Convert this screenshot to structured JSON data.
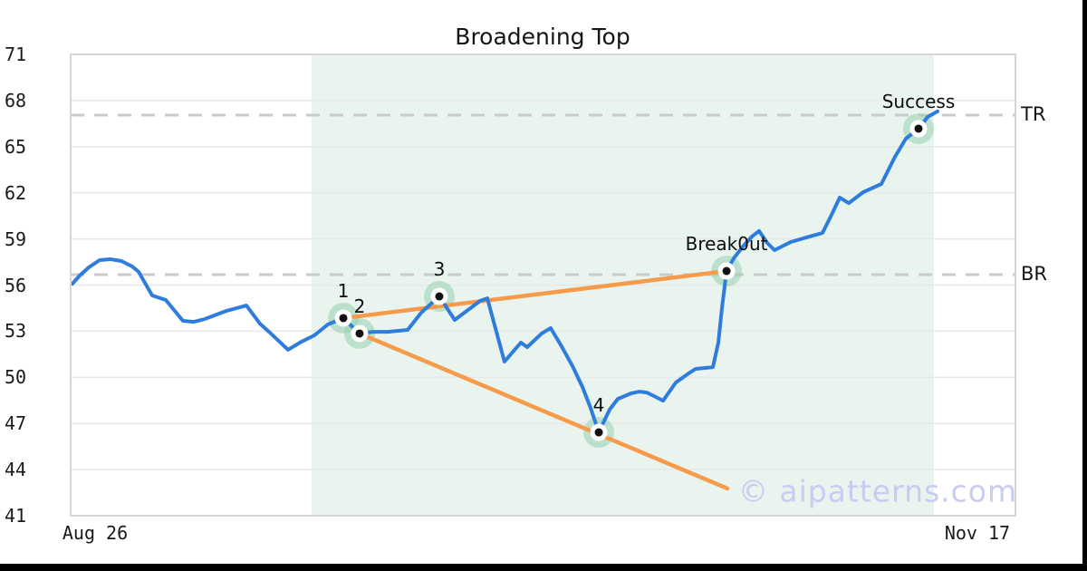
{
  "title": "Broadening Top",
  "watermark": "© aipatterns.com",
  "colors": {
    "price": "#2e7cdb",
    "trend": "#f79a49",
    "shade": "#e9f4ef",
    "dashed": "#cbcbcb",
    "grid": "#e8e8e8",
    "border": "#d6d6d6",
    "halo": "rgba(150,210,175,0.55)",
    "marker_ring": "#ffffff",
    "marker_dot": "#111111",
    "watermark": "#c8ccf0",
    "text": "#1a1a1a"
  },
  "chart_data": {
    "type": "line",
    "title": "Broadening Top",
    "xlabel": "",
    "ylabel": "",
    "ylim": [
      41,
      71
    ],
    "xlim": [
      0,
      100
    ],
    "grid": true,
    "legend": "none",
    "y_ticks": [
      41,
      44,
      47,
      50,
      53,
      56,
      59,
      62,
      65,
      68,
      71
    ],
    "x_ticks": [
      {
        "label": "Aug 26",
        "u": 2.59
      },
      {
        "label": "Nov 17",
        "u": 95.97
      }
    ],
    "shade": {
      "u0": 25.5,
      "u1": 91.37
    },
    "levels": [
      {
        "label": "TR",
        "value": 67.05
      },
      {
        "label": "BR",
        "value": 56.68
      }
    ],
    "trendlines": [
      {
        "name": "upper-broadening-trendline",
        "from": [
          28.86,
          53.85
        ],
        "to": [
          69.42,
          56.91
        ]
      },
      {
        "name": "lower-broadening-trendline",
        "from": [
          30.58,
          52.85
        ],
        "to": [
          69.51,
          42.77
        ]
      }
    ],
    "markers": [
      {
        "label": "1",
        "u": 28.86,
        "p": 53.85
      },
      {
        "label": "2",
        "u": 30.58,
        "p": 52.85
      },
      {
        "label": "3",
        "u": 39.02,
        "p": 55.26
      },
      {
        "label": "4",
        "u": 55.9,
        "p": 46.42
      },
      {
        "label": "Break0ut",
        "u": 69.42,
        "p": 56.91
      },
      {
        "label": "Success",
        "u": 89.74,
        "p": 66.17
      }
    ],
    "series": [
      {
        "name": "price",
        "points": [
          [
            0.19,
            56.09
          ],
          [
            0.96,
            56.62
          ],
          [
            1.92,
            57.15
          ],
          [
            3.07,
            57.62
          ],
          [
            4.22,
            57.68
          ],
          [
            5.37,
            57.56
          ],
          [
            6.52,
            57.21
          ],
          [
            7.19,
            56.86
          ],
          [
            8.63,
            55.32
          ],
          [
            10.07,
            55.03
          ],
          [
            11.89,
            53.67
          ],
          [
            13.04,
            53.61
          ],
          [
            14.19,
            53.79
          ],
          [
            16.49,
            54.32
          ],
          [
            18.6,
            54.67
          ],
          [
            20.04,
            53.49
          ],
          [
            21.0,
            52.96
          ],
          [
            23.01,
            51.79
          ],
          [
            24.45,
            52.32
          ],
          [
            25.79,
            52.73
          ],
          [
            27.23,
            53.44
          ],
          [
            28.86,
            53.85
          ],
          [
            30.58,
            52.85
          ],
          [
            32.02,
            52.96
          ],
          [
            33.56,
            52.96
          ],
          [
            35.67,
            53.08
          ],
          [
            37.1,
            54.2
          ],
          [
            38.16,
            54.79
          ],
          [
            39.02,
            55.26
          ],
          [
            40.65,
            53.73
          ],
          [
            42.19,
            54.44
          ],
          [
            43.34,
            54.97
          ],
          [
            44.1,
            55.14
          ],
          [
            45.92,
            51.02
          ],
          [
            47.65,
            52.26
          ],
          [
            48.32,
            51.96
          ],
          [
            49.86,
            52.85
          ],
          [
            50.81,
            53.2
          ],
          [
            51.96,
            52.02
          ],
          [
            53.12,
            50.73
          ],
          [
            54.17,
            49.37
          ],
          [
            55.03,
            48.01
          ],
          [
            55.9,
            46.42
          ],
          [
            57.05,
            47.9
          ],
          [
            57.91,
            48.6
          ],
          [
            59.35,
            48.96
          ],
          [
            60.21,
            49.07
          ],
          [
            60.98,
            49.01
          ],
          [
            61.94,
            48.72
          ],
          [
            62.7,
            48.48
          ],
          [
            64.05,
            49.66
          ],
          [
            65.39,
            50.25
          ],
          [
            66.16,
            50.55
          ],
          [
            67.11,
            50.61
          ],
          [
            67.98,
            50.66
          ],
          [
            68.55,
            52.26
          ],
          [
            68.94,
            54.5
          ],
          [
            69.42,
            56.91
          ],
          [
            70.18,
            57.74
          ],
          [
            71.14,
            58.5
          ],
          [
            72.1,
            59.15
          ],
          [
            72.87,
            59.51
          ],
          [
            73.73,
            58.74
          ],
          [
            74.5,
            58.27
          ],
          [
            76.22,
            58.8
          ],
          [
            77.85,
            59.09
          ],
          [
            79.58,
            59.39
          ],
          [
            80.54,
            60.57
          ],
          [
            81.4,
            61.69
          ],
          [
            82.36,
            61.33
          ],
          [
            83.89,
            62.04
          ],
          [
            85.81,
            62.57
          ],
          [
            87.25,
            64.34
          ],
          [
            88.4,
            65.52
          ],
          [
            89.74,
            66.17
          ],
          [
            90.7,
            66.93
          ],
          [
            91.75,
            67.29
          ]
        ]
      }
    ]
  }
}
